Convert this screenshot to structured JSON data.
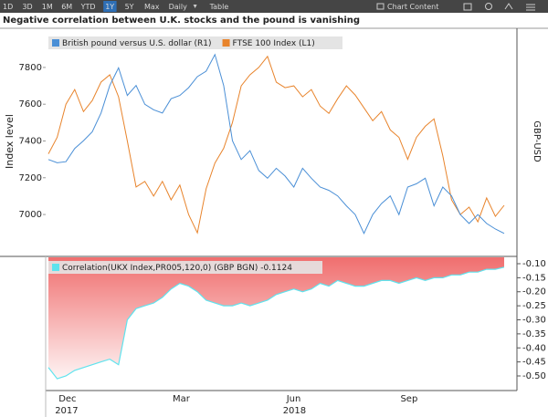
{
  "toolbar": {
    "buttons": [
      "1D",
      "3D",
      "1M",
      "6M",
      "YTD",
      "1Y",
      "5Y",
      "Max",
      "Daily",
      "Table"
    ],
    "active": "1Y",
    "right_button": "Chart Content"
  },
  "chart_data": [
    {
      "type": "line",
      "title": "Negative correlation between U.K. stocks and the pound is vanishing",
      "ylabel": "Index level",
      "y2label": "GBP-USD",
      "ylim": [
        6777,
        8008
      ],
      "yticks": [
        7000,
        7200,
        7400,
        7600,
        7800
      ],
      "y2lim": [
        1.253,
        1.458
      ],
      "series": [
        {
          "name": "British pound versus U.S. dollar (R1)",
          "color": "#4a8fd6",
          "axis": "y2",
          "values": [
            1.34,
            1.337,
            1.338,
            1.35,
            1.357,
            1.365,
            1.382,
            1.407,
            1.423,
            1.398,
            1.407,
            1.39,
            1.385,
            1.382,
            1.395,
            1.398,
            1.405,
            1.415,
            1.42,
            1.435,
            1.407,
            1.357,
            1.34,
            1.348,
            1.33,
            1.323,
            1.332,
            1.325,
            1.315,
            1.332,
            1.323,
            1.315,
            1.312,
            1.307,
            1.298,
            1.29,
            1.273,
            1.29,
            1.3,
            1.307,
            1.29,
            1.315,
            1.318,
            1.323,
            1.298,
            1.315,
            1.307,
            1.29,
            1.282,
            1.29,
            1.282,
            1.277,
            1.273
          ]
        },
        {
          "name": "FTSE 100 Index (L1)",
          "color": "#e8842c",
          "axis": "y",
          "values": [
            7330,
            7420,
            7600,
            7680,
            7560,
            7620,
            7720,
            7760,
            7640,
            7400,
            7150,
            7180,
            7100,
            7180,
            7080,
            7160,
            7000,
            6900,
            7140,
            7280,
            7360,
            7500,
            7700,
            7760,
            7800,
            7860,
            7720,
            7690,
            7700,
            7640,
            7680,
            7590,
            7550,
            7630,
            7700,
            7650,
            7580,
            7510,
            7560,
            7460,
            7420,
            7300,
            7420,
            7480,
            7520,
            7320,
            7080,
            7000,
            7040,
            6960,
            7090,
            6990,
            7050
          ]
        }
      ]
    },
    {
      "type": "area",
      "categories": [
        null,
        null,
        "Dec",
        null,
        null,
        null,
        null,
        null,
        null,
        null,
        null,
        null,
        null,
        null,
        null,
        "Mar",
        null,
        null,
        null,
        null,
        null,
        null,
        null,
        null,
        null,
        null,
        null,
        null,
        "Jun",
        null,
        null,
        null,
        null,
        null,
        null,
        null,
        null,
        null,
        null,
        null,
        null,
        "Sep",
        null,
        null,
        null,
        null,
        null,
        null,
        null,
        null,
        null,
        null,
        null
      ],
      "category_years": [
        null,
        null,
        "2017",
        null,
        null,
        null,
        null,
        null,
        null,
        null,
        null,
        null,
        null,
        null,
        null,
        null,
        null,
        null,
        null,
        null,
        null,
        null,
        null,
        null,
        null,
        null,
        null,
        null,
        "2018",
        null,
        null,
        null,
        null,
        null,
        null,
        null,
        null,
        null,
        null,
        null,
        null,
        null,
        null,
        null,
        null,
        null,
        null,
        null,
        null,
        null,
        null,
        null,
        null
      ],
      "ylim": [
        -0.552,
        -0.074
      ],
      "yticks": [
        {
          "value": -0.1,
          "label": "-0.10"
        },
        {
          "value": -0.15,
          "label": "-0.15"
        },
        {
          "value": -0.2,
          "label": "-0.20"
        },
        {
          "value": -0.25,
          "label": "-0.25"
        },
        {
          "value": -0.3,
          "label": "-0.30"
        },
        {
          "value": -0.35,
          "label": "-0.35"
        },
        {
          "value": -0.4,
          "label": "-0.40"
        },
        {
          "value": -0.45,
          "label": "-0.45"
        },
        {
          "value": -0.5,
          "label": "-0.50"
        }
      ],
      "fill_color": "#f06e6e",
      "series": [
        {
          "name": "Correlation(UKX Index,PR005,120,0) (GBP BGN) -0.1124",
          "color": "#5fe3ee",
          "values": [
            -0.47,
            -0.51,
            -0.5,
            -0.48,
            -0.47,
            -0.46,
            -0.45,
            -0.44,
            -0.46,
            -0.3,
            -0.26,
            -0.25,
            -0.24,
            -0.22,
            -0.19,
            -0.17,
            -0.18,
            -0.2,
            -0.23,
            -0.24,
            -0.25,
            -0.25,
            -0.24,
            -0.25,
            -0.24,
            -0.23,
            -0.21,
            -0.2,
            -0.19,
            -0.2,
            -0.19,
            -0.17,
            -0.18,
            -0.16,
            -0.17,
            -0.18,
            -0.18,
            -0.17,
            -0.16,
            -0.16,
            -0.17,
            -0.16,
            -0.15,
            -0.16,
            -0.15,
            -0.15,
            -0.14,
            -0.14,
            -0.13,
            -0.13,
            -0.12,
            -0.12,
            -0.1124
          ]
        }
      ]
    }
  ]
}
